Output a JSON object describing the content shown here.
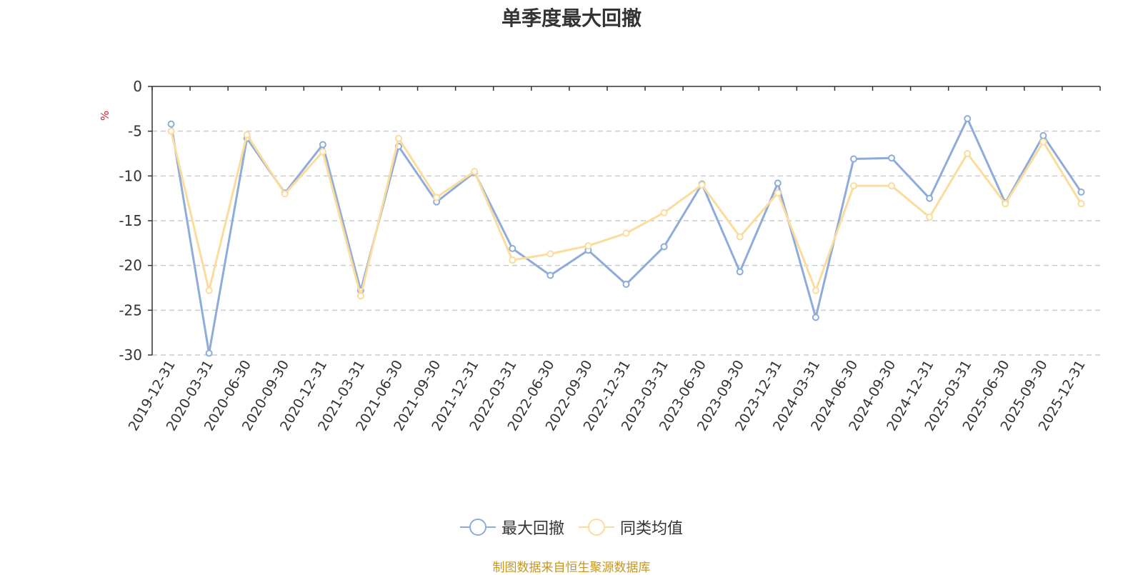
{
  "chart_data": {
    "type": "line",
    "title": "单季度最大回撤",
    "ylabel": "%",
    "xlabel": "",
    "ylim": [
      -30,
      0
    ],
    "yticks": [
      0,
      -5,
      -10,
      -15,
      -20,
      -25,
      -30
    ],
    "grid": true,
    "legend_position": "bottom-center",
    "categories": [
      "2019-12-31",
      "2020-03-31",
      "2020-06-30",
      "2020-09-30",
      "2020-12-31",
      "2021-03-31",
      "2021-06-30",
      "2021-09-30",
      "2021-12-31",
      "2022-03-31",
      "2022-06-30",
      "2022-09-30",
      "2022-12-31",
      "2023-03-31",
      "2023-06-30",
      "2023-09-30",
      "2023-12-31",
      "2024-03-31",
      "2024-06-30",
      "2024-09-30",
      "2024-12-31",
      "2025-03-31",
      "2025-06-30",
      "2025-09-30",
      "2025-12-31"
    ],
    "series": [
      {
        "name": "最大回撤",
        "color": "#8eacd9",
        "values": [
          -4.2,
          -29.8,
          -5.8,
          -11.9,
          -6.5,
          -22.8,
          -6.7,
          -12.9,
          -9.6,
          -18.1,
          -21.1,
          -18.3,
          -22.1,
          -17.9,
          -10.9,
          -20.7,
          -10.8,
          -25.8,
          -8.1,
          -8.0,
          -12.5,
          -3.6,
          -13.0,
          -5.5,
          -11.8
        ]
      },
      {
        "name": "同类均值",
        "color": "#fbdc9c",
        "values": [
          -5.0,
          -22.8,
          -5.4,
          -12.0,
          -7.3,
          -23.4,
          -5.8,
          -12.4,
          -9.5,
          -19.4,
          -18.7,
          -17.8,
          -16.4,
          -14.1,
          -11.0,
          -16.8,
          -11.9,
          -22.8,
          -11.1,
          -11.1,
          -14.6,
          -7.5,
          -13.1,
          -6.2,
          -13.1
        ]
      }
    ]
  },
  "source_text": "制图数据来自恒生聚源数据库"
}
